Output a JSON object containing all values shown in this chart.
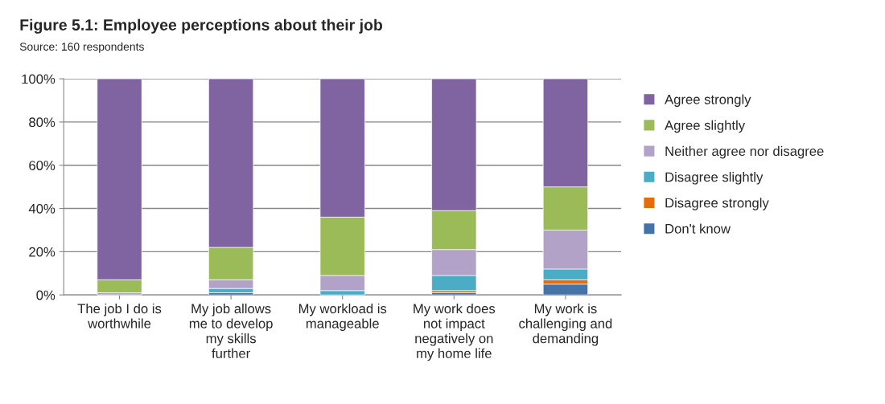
{
  "chart_data": {
    "type": "bar",
    "stacked": true,
    "title": "Figure 5.1: Employee perceptions about their job",
    "subtitle": "Source: 160 respondents",
    "categories": [
      "The job I do is worthwhile",
      "My job allows me to develop my skills further",
      "My workload is manageable",
      "My work does not impact negatively on my home life",
      "My work is challenging and demanding"
    ],
    "series": [
      {
        "name": "Don't know",
        "color": "#4572a7",
        "values": [
          0,
          1,
          0,
          1,
          5
        ]
      },
      {
        "name": "Disagree strongly",
        "color": "#e46c0a",
        "values": [
          0,
          0,
          0,
          1,
          2
        ]
      },
      {
        "name": "Disagree slightly",
        "color": "#4bacc6",
        "values": [
          0,
          2,
          2,
          7,
          5
        ]
      },
      {
        "name": "Neither agree nor disagree",
        "color": "#b3a2c7",
        "values": [
          1,
          4,
          7,
          12,
          18
        ]
      },
      {
        "name": "Agree slightly",
        "color": "#9bbb59",
        "values": [
          6,
          15,
          27,
          18,
          20
        ]
      },
      {
        "name": "Agree strongly",
        "color": "#8064a2",
        "values": [
          93,
          78,
          64,
          61,
          50
        ]
      }
    ],
    "ylim": [
      0,
      100
    ],
    "yticks": [
      {
        "value": 0,
        "label": "0%"
      },
      {
        "value": 20,
        "label": "20%"
      },
      {
        "value": 40,
        "label": "40%"
      },
      {
        "value": 60,
        "label": "60%"
      },
      {
        "value": 80,
        "label": "80%"
      },
      {
        "value": 100,
        "label": "100%"
      }
    ],
    "grid": "y",
    "legend": "right"
  }
}
